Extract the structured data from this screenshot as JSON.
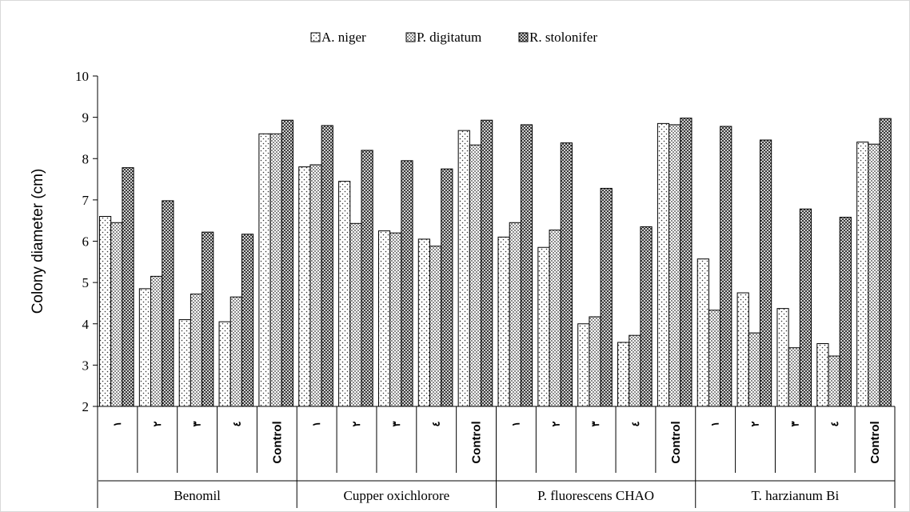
{
  "chart_data": {
    "type": "bar",
    "ylabel": "Colony diameter (cm)",
    "ylim": [
      2,
      10
    ],
    "yticks": [
      2,
      3,
      4,
      5,
      6,
      7,
      8,
      9,
      10
    ],
    "legend_position": "top-center",
    "groups": [
      "Benomil",
      "Cupper oxichlorore",
      "P. fluorescens CHAO",
      "T. harzianum Bi"
    ],
    "levels": [
      "١",
      "٢",
      "٣",
      "٤",
      "Control"
    ],
    "series": [
      {
        "name": "A. niger",
        "pattern": "dots",
        "values": [
          6.6,
          4.85,
          4.1,
          4.05,
          8.6,
          7.8,
          7.45,
          6.25,
          6.05,
          8.68,
          6.1,
          5.85,
          4.0,
          3.55,
          8.85,
          5.57,
          4.75,
          4.37,
          3.52,
          8.4
        ]
      },
      {
        "name": "P. digitatum",
        "pattern": "fine-checker",
        "values": [
          6.45,
          5.15,
          4.72,
          4.65,
          8.6,
          7.85,
          6.43,
          6.2,
          5.88,
          8.33,
          6.45,
          6.27,
          4.17,
          3.72,
          8.82,
          4.33,
          3.78,
          3.42,
          3.22,
          8.35
        ]
      },
      {
        "name": "R. stolonifer",
        "pattern": "dense-checker",
        "values": [
          7.78,
          6.98,
          6.22,
          6.17,
          8.93,
          8.8,
          8.2,
          7.95,
          7.75,
          8.93,
          8.82,
          8.38,
          7.28,
          6.35,
          8.98,
          8.78,
          8.45,
          6.78,
          6.58,
          8.97
        ]
      }
    ]
  }
}
